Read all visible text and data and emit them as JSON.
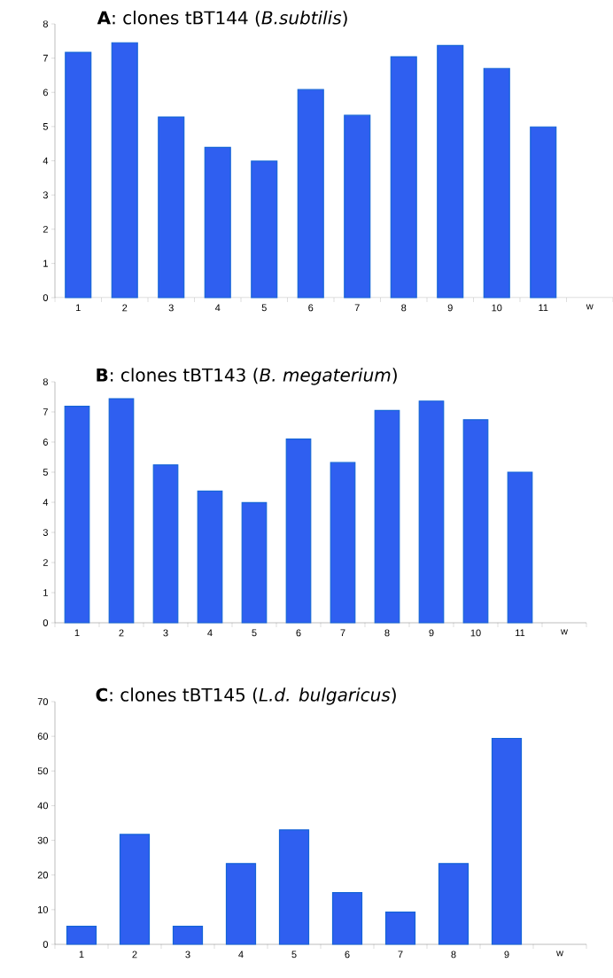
{
  "chart_data": [
    {
      "type": "bar",
      "title": "**A**: clones tBT144 (*B.subtilis*)",
      "categories": [
        "1",
        "2",
        "3",
        "4",
        "5",
        "6",
        "7",
        "8",
        "9",
        "10",
        "11",
        "w"
      ],
      "values": [
        7.17,
        7.45,
        5.28,
        4.39,
        3.99,
        6.08,
        5.33,
        7.04,
        7.37,
        6.7,
        4.99,
        null
      ],
      "color": "#2f5ff0",
      "ylim": [
        0,
        8
      ],
      "yticks": [
        0,
        1,
        2,
        3,
        4,
        5,
        6,
        7,
        8
      ]
    },
    {
      "type": "bar",
      "title": "**B**: clones tBT143 (*B. megaterium*)",
      "categories": [
        "1",
        "2",
        "3",
        "4",
        "5",
        "6",
        "7",
        "8",
        "9",
        "10",
        "11",
        "w"
      ],
      "values": [
        7.19,
        7.44,
        5.24,
        4.37,
        3.99,
        6.1,
        5.32,
        7.05,
        7.36,
        6.74,
        5.0,
        null
      ],
      "color": "#2f5ff0",
      "ylim": [
        0,
        8
      ],
      "yticks": [
        0,
        1,
        2,
        3,
        4,
        5,
        6,
        7,
        8
      ]
    },
    {
      "type": "bar",
      "title": "**C**: clones tBT145 (*L.d. bulgaricus*)",
      "categories": [
        "1",
        "2",
        "3",
        "4",
        "5",
        "6",
        "7",
        "8",
        "9",
        "w"
      ],
      "values": [
        5.2,
        31.7,
        5.2,
        23.3,
        33.0,
        14.9,
        9.3,
        23.3,
        59.4,
        null
      ],
      "color": "#2f5ff0",
      "ylim": [
        0,
        70
      ],
      "yticks": [
        0,
        10,
        20,
        30,
        40,
        50,
        60,
        70
      ]
    }
  ]
}
